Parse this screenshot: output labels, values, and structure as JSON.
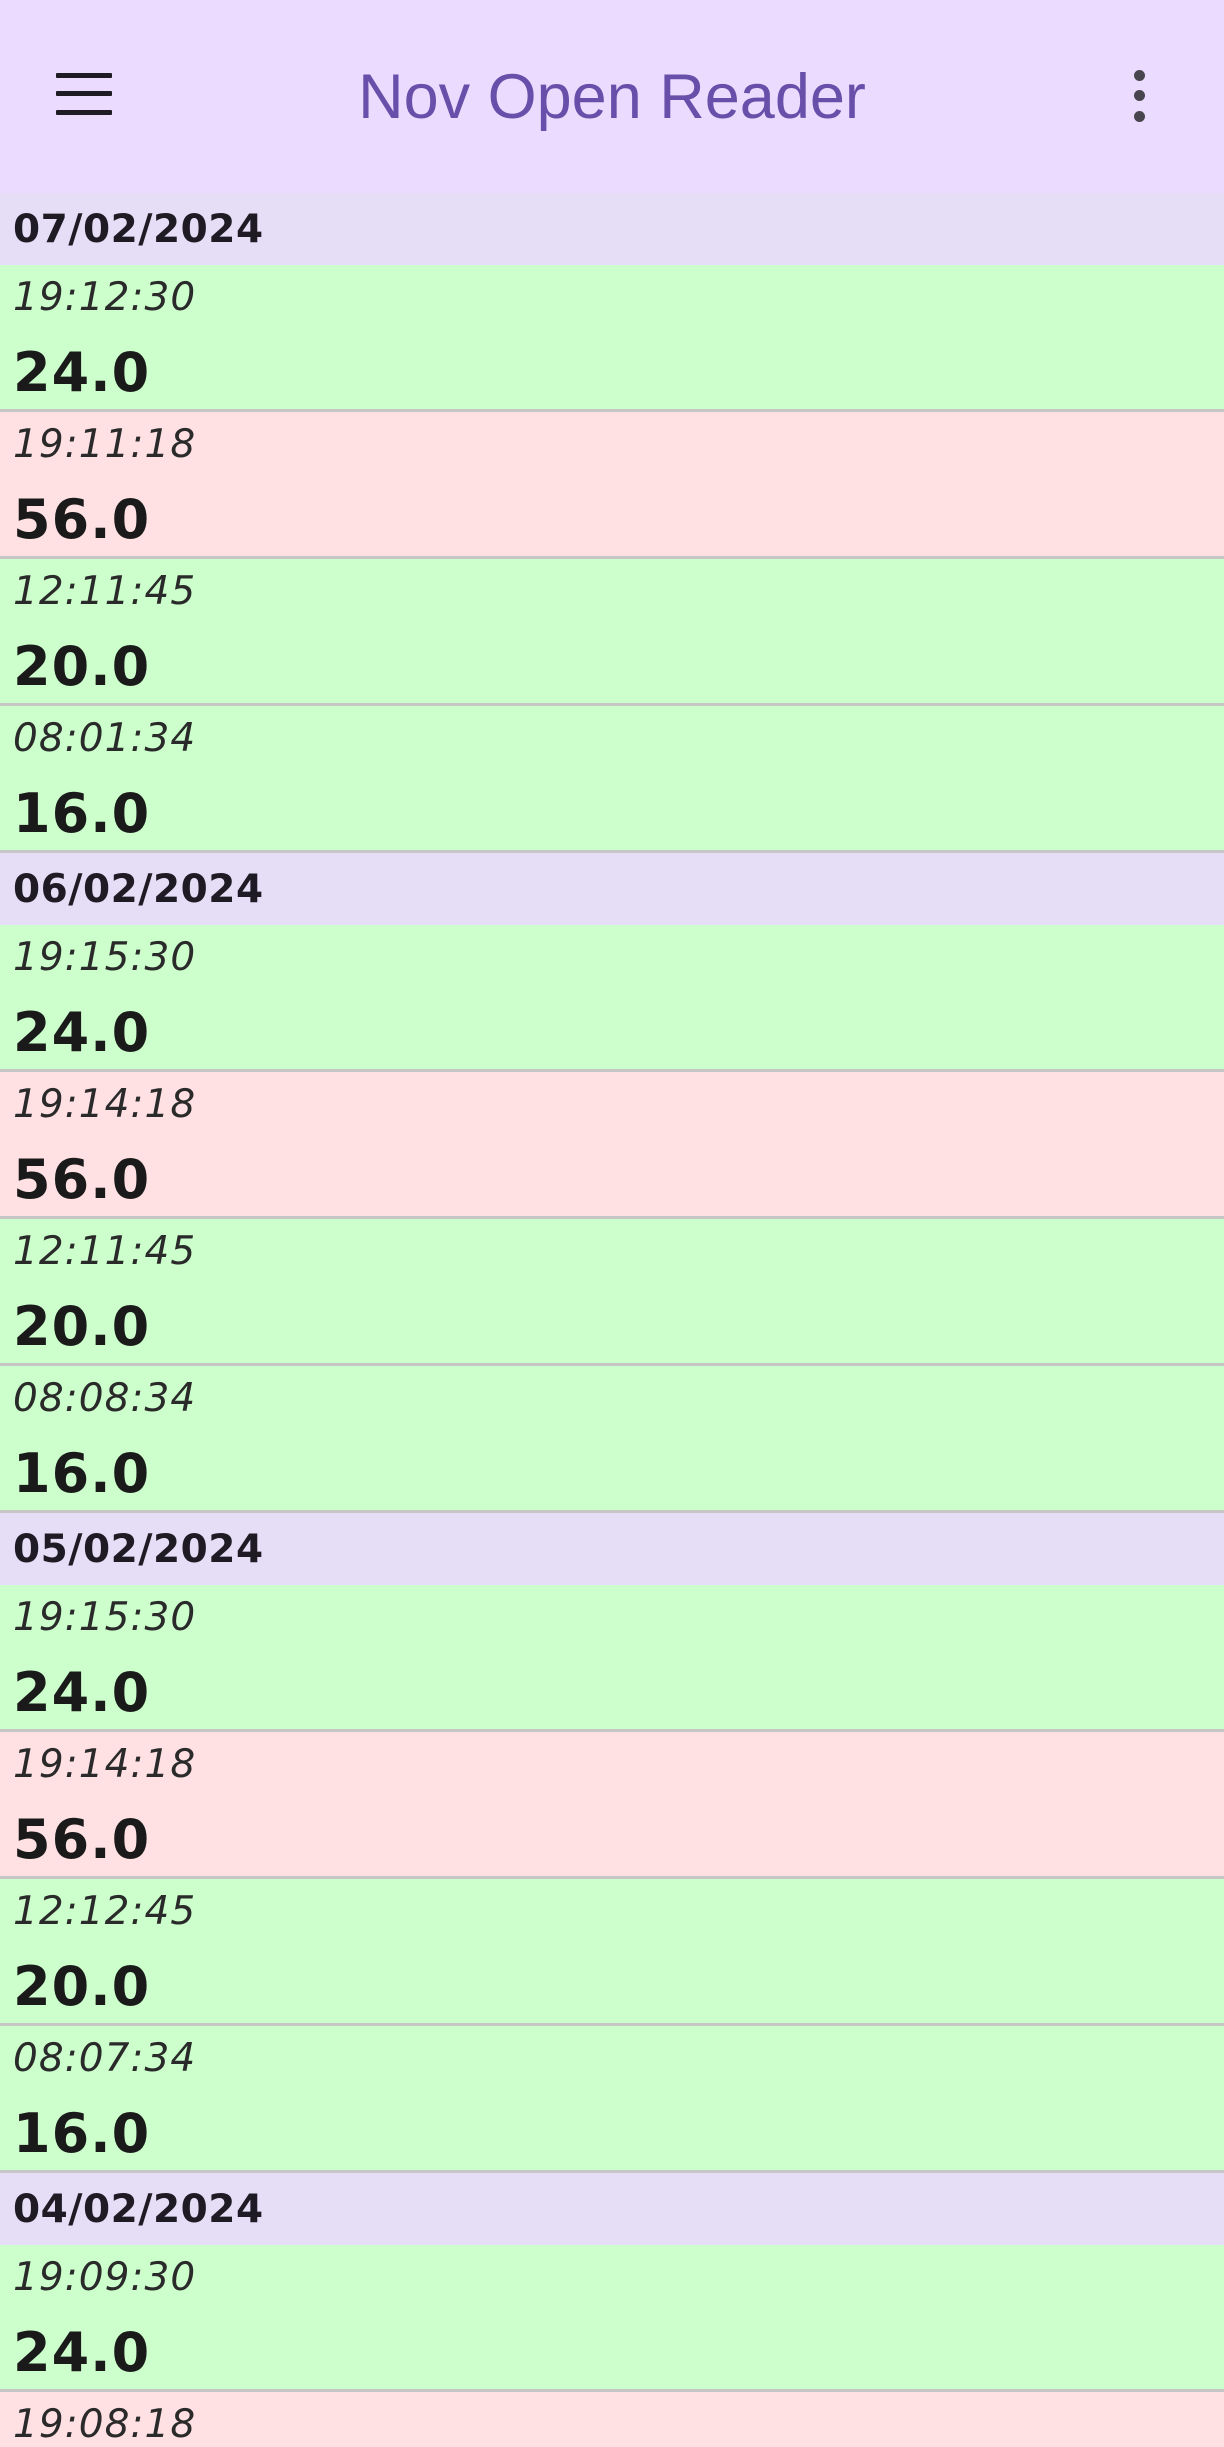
{
  "app_bar": {
    "title": "Nov Open Reader",
    "menu_icon": "hamburger-menu-icon",
    "overflow_icon": "more-vert-icon"
  },
  "colors": {
    "app_bar_bg": "#ebdcff",
    "title": "#6a4faa",
    "date_header_bg": "#e6ddf7",
    "ok_row_bg": "#ccffcc",
    "warn_row_bg": "#ffe1e4"
  },
  "groups": [
    {
      "date": "07/02/2024",
      "readings": [
        {
          "time": "19:12:30",
          "value": "24.0",
          "status": "ok"
        },
        {
          "time": "19:11:18",
          "value": "56.0",
          "status": "warn"
        },
        {
          "time": "12:11:45",
          "value": "20.0",
          "status": "ok"
        },
        {
          "time": "08:01:34",
          "value": "16.0",
          "status": "ok"
        }
      ]
    },
    {
      "date": "06/02/2024",
      "readings": [
        {
          "time": "19:15:30",
          "value": "24.0",
          "status": "ok"
        },
        {
          "time": "19:14:18",
          "value": "56.0",
          "status": "warn"
        },
        {
          "time": "12:11:45",
          "value": "20.0",
          "status": "ok"
        },
        {
          "time": "08:08:34",
          "value": "16.0",
          "status": "ok"
        }
      ]
    },
    {
      "date": "05/02/2024",
      "readings": [
        {
          "time": "19:15:30",
          "value": "24.0",
          "status": "ok"
        },
        {
          "time": "19:14:18",
          "value": "56.0",
          "status": "warn"
        },
        {
          "time": "12:12:45",
          "value": "20.0",
          "status": "ok"
        },
        {
          "time": "08:07:34",
          "value": "16.0",
          "status": "ok"
        }
      ]
    },
    {
      "date": "04/02/2024",
      "readings": [
        {
          "time": "19:09:30",
          "value": "24.0",
          "status": "ok"
        },
        {
          "time": "19:08:18",
          "value": "",
          "status": "warn"
        }
      ]
    }
  ]
}
